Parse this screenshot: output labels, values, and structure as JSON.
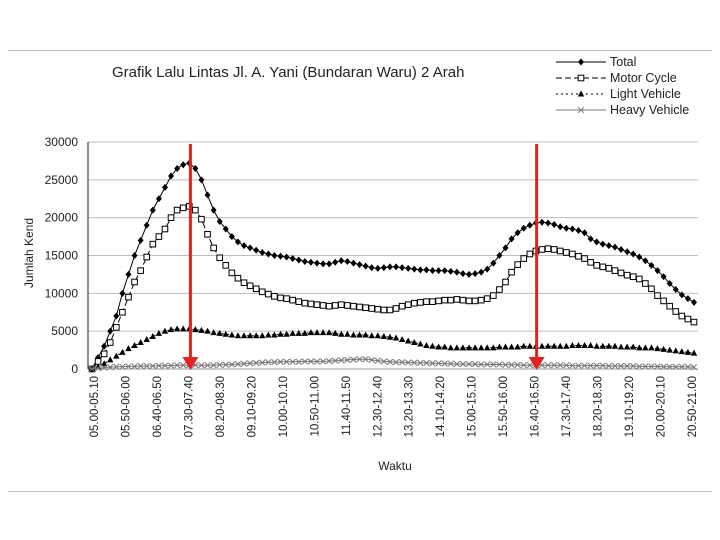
{
  "chart_data": {
    "type": "line",
    "title": "Grafik Lalu Lintas Jl. A. Yani (Bundaran Waru) 2 Arah",
    "xlabel": "Waktu",
    "ylabel": "Jumlah Kend",
    "ylim": [
      0,
      30000
    ],
    "yticks": [
      "0",
      "5000",
      "10000",
      "15000",
      "20000",
      "25000",
      "30000"
    ],
    "grid": true,
    "legend_position": "top-right",
    "x_tick_labels": [
      "05.00-05.10",
      "05.50-06.00",
      "06.40-06.50",
      "07.30-07.40",
      "08.20-08.30",
      "09.10-09.20",
      "10.00-10.10",
      "10.50-11.00",
      "11.40-11.50",
      "12.30-12.40",
      "13.20-13.30",
      "14.10-14.20",
      "15.00-15.10",
      "15.50-16.00",
      "16.40-16.50",
      "17.30-17.40",
      "18.20-18.30",
      "19.10-19.20",
      "20.00-20.10",
      "20.50-21.00"
    ],
    "highlight_colors": {
      "arrow": "#e0231f"
    },
    "arrows_at_x_labels": [
      "07.30-07.40",
      "16.40-16.50"
    ],
    "series": [
      {
        "name": "Total",
        "marker": "diamond",
        "dash": "solid",
        "color": "#000000",
        "values": [
          0,
          1500,
          3000,
          5000,
          7000,
          10000,
          12500,
          15000,
          17000,
          19000,
          21000,
          22500,
          24000,
          25500,
          26500,
          27000,
          27200,
          26500,
          25000,
          23000,
          21000,
          19500,
          18500,
          17500,
          16800,
          16300,
          16000,
          15700,
          15400,
          15200,
          15000,
          14900,
          14800,
          14600,
          14400,
          14200,
          14100,
          14000,
          13900,
          13900,
          14100,
          14300,
          14200,
          14000,
          13800,
          13600,
          13400,
          13300,
          13400,
          13500,
          13500,
          13400,
          13300,
          13200,
          13100,
          13100,
          13000,
          13000,
          13000,
          12900,
          12800,
          12600,
          12500,
          12600,
          12800,
          13200,
          14000,
          15000,
          16000,
          17200,
          18000,
          18600,
          19000,
          19300,
          19400,
          19300,
          19100,
          18800,
          18600,
          18500,
          18300,
          18000,
          17200,
          16800,
          16500,
          16300,
          16100,
          15800,
          15500,
          15200,
          14800,
          14300,
          13700,
          13000,
          12200,
          11300,
          10500,
          9800,
          9300,
          8800
        ]
      },
      {
        "name": "Motor Cycle",
        "marker": "square",
        "dash": "dashed",
        "color": "#000000",
        "values": [
          0,
          1000,
          2000,
          3500,
          5500,
          7500,
          9500,
          11500,
          13000,
          14800,
          16500,
          17500,
          18500,
          20000,
          21000,
          21300,
          21500,
          21000,
          19800,
          17800,
          16000,
          14700,
          13700,
          12700,
          12000,
          11400,
          11000,
          10600,
          10200,
          9900,
          9600,
          9400,
          9300,
          9100,
          8900,
          8700,
          8600,
          8500,
          8400,
          8300,
          8400,
          8500,
          8400,
          8300,
          8200,
          8100,
          8000,
          7900,
          7800,
          7800,
          8000,
          8300,
          8500,
          8700,
          8800,
          8900,
          8900,
          9000,
          9100,
          9100,
          9200,
          9100,
          9000,
          9000,
          9100,
          9300,
          9700,
          10500,
          11500,
          12800,
          13800,
          14600,
          15200,
          15600,
          15800,
          15900,
          15800,
          15600,
          15400,
          15200,
          14900,
          14600,
          14100,
          13700,
          13500,
          13300,
          13000,
          12700,
          12400,
          12200,
          11900,
          11300,
          10600,
          9700,
          9000,
          8300,
          7600,
          7000,
          6600,
          6200
        ]
      },
      {
        "name": "Light Vehicle",
        "marker": "triangle",
        "dash": "dotted",
        "color": "#000000",
        "values": [
          0,
          300,
          700,
          1200,
          1700,
          2200,
          2700,
          3100,
          3500,
          3900,
          4300,
          4700,
          5000,
          5200,
          5300,
          5300,
          5300,
          5200,
          5100,
          5000,
          4800,
          4700,
          4600,
          4500,
          4400,
          4400,
          4400,
          4400,
          4400,
          4500,
          4500,
          4600,
          4600,
          4700,
          4700,
          4700,
          4800,
          4800,
          4800,
          4800,
          4700,
          4600,
          4600,
          4500,
          4500,
          4500,
          4400,
          4400,
          4300,
          4200,
          4100,
          3900,
          3700,
          3500,
          3300,
          3100,
          3000,
          2900,
          2900,
          2800,
          2800,
          2800,
          2800,
          2800,
          2800,
          2800,
          2800,
          2900,
          2900,
          2900,
          2900,
          3000,
          3000,
          3000,
          3000,
          3000,
          3000,
          3000,
          3000,
          3100,
          3100,
          3100,
          3100,
          3000,
          3000,
          3000,
          3000,
          2900,
          2900,
          2900,
          2800,
          2800,
          2800,
          2700,
          2600,
          2500,
          2400,
          2300,
          2200,
          2100
        ]
      },
      {
        "name": "Heavy Vehicle",
        "marker": "x",
        "dash": "solid",
        "color": "#777777",
        "values": [
          0,
          100,
          200,
          250,
          300,
          300,
          350,
          350,
          400,
          400,
          400,
          450,
          450,
          450,
          500,
          500,
          500,
          500,
          500,
          500,
          500,
          550,
          550,
          600,
          650,
          700,
          750,
          800,
          850,
          900,
          900,
          950,
          950,
          950,
          950,
          1000,
          1000,
          1000,
          1000,
          1050,
          1100,
          1150,
          1200,
          1250,
          1300,
          1300,
          1200,
          1100,
          1000,
          950,
          900,
          900,
          850,
          850,
          800,
          800,
          750,
          750,
          700,
          700,
          650,
          650,
          650,
          650,
          600,
          600,
          600,
          600,
          550,
          550,
          550,
          500,
          500,
          500,
          500,
          500,
          500,
          500,
          500,
          450,
          450,
          450,
          450,
          450,
          450,
          400,
          400,
          400,
          400,
          400,
          350,
          350,
          350,
          350,
          300,
          300,
          300,
          300,
          300,
          250
        ]
      }
    ]
  }
}
